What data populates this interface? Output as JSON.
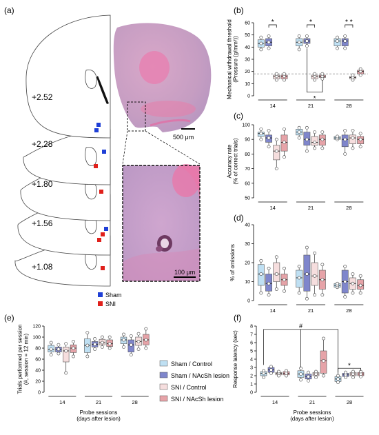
{
  "panels": {
    "a": "(a)",
    "b": "(b)",
    "c": "(c)",
    "d": "(d)",
    "e": "(e)",
    "f": "(f)"
  },
  "histology": {
    "levels": [
      "+2.52",
      "+2.28",
      "+1.80",
      "+1.56",
      "+1.08"
    ],
    "scale_top": "500 μm",
    "scale_inset": "100 μm",
    "legend": [
      {
        "label": "Sham",
        "color": "#1f3fd6"
      },
      {
        "label": "SNI",
        "color": "#e0201b"
      }
    ]
  },
  "group_legend": [
    {
      "label": "Sham / Control",
      "color": "#bfe0f3"
    },
    {
      "label": "Sham / NAcSh lesion",
      "color": "#7f86cc"
    },
    {
      "label": "SNI / Control",
      "color": "#f6dede"
    },
    {
      "label": "SNI / NAcSh lesion",
      "color": "#e6a3a8"
    }
  ],
  "chart_data": [
    {
      "id": "b",
      "type": "box",
      "ylabel": "Mechanical withdrawal threshold\n(Pressure (g/mm²))",
      "ylim": [
        0,
        60
      ],
      "yticks": [
        0,
        10,
        20,
        30,
        40,
        50,
        60
      ],
      "categories": [
        "14",
        "21",
        "28"
      ],
      "reference_line": 18,
      "groups": [
        {
          "name": "Sham / Control",
          "boxes": [
            [
              38,
              40,
              43,
              46,
              48
            ],
            [
              38,
              41,
              44,
              47,
              49
            ],
            [
              39,
              41,
              45,
              47,
              48
            ]
          ]
        },
        {
          "name": "Sham / NAcSh lesion",
          "boxes": [
            [
              39,
              41,
              44,
              47,
              49
            ],
            [
              41,
              43,
              45,
              47,
              49
            ],
            [
              39,
              41,
              45,
              47,
              49
            ]
          ]
        },
        {
          "name": "SNI / Control",
          "boxes": [
            [
              13,
              14,
              16,
              17,
              18
            ],
            [
              13,
              14,
              16,
              17,
              18
            ],
            [
              13,
              14,
              15,
              16,
              17
            ]
          ]
        },
        {
          "name": "SNI / NAcSh lesion",
          "boxes": [
            [
              13,
              14,
              16,
              17,
              18
            ],
            [
              14,
              15,
              16,
              17,
              18
            ],
            [
              17,
              18,
              20,
              21,
              22
            ]
          ]
        }
      ],
      "annotations": [
        "*",
        "*",
        "* *",
        "*"
      ]
    },
    {
      "id": "c",
      "type": "box",
      "ylabel": "Accuracy rate\n(% of correct trials)",
      "ylim": [
        50,
        100
      ],
      "yticks": [
        50,
        60,
        70,
        80,
        90,
        100
      ],
      "categories": [
        "14",
        "21",
        "28"
      ],
      "groups": [
        {
          "name": "Sham / Control",
          "boxes": [
            [
              90,
              92,
              94,
              95,
              97
            ],
            [
              91,
              93,
              95,
              97,
              98
            ],
            [
              90,
              90,
              91,
              92,
              92
            ]
          ]
        },
        {
          "name": "Sham / NAcSh lesion",
          "boxes": [
            [
              85,
              88,
              91,
              93,
              96
            ],
            [
              82,
              86,
              90,
              95,
              98
            ],
            [
              80,
              85,
              90,
              93,
              96
            ]
          ]
        },
        {
          "name": "SNI / Control",
          "boxes": [
            [
              70,
              76,
              82,
              86,
              90
            ],
            [
              84,
              86,
              88,
              92,
              95
            ],
            [
              84,
              87,
              91,
              93,
              96
            ]
          ]
        },
        {
          "name": "SNI / NAcSh lesion",
          "boxes": [
            [
              78,
              82,
              88,
              93,
              97
            ],
            [
              84,
              86,
              90,
              93,
              95
            ],
            [
              85,
              87,
              90,
              92,
              94
            ]
          ]
        }
      ]
    },
    {
      "id": "d",
      "type": "box",
      "ylabel": "% of omissions",
      "ylim": [
        0,
        40
      ],
      "yticks": [
        0,
        10,
        20,
        30,
        40
      ],
      "categories": [
        "14",
        "21",
        "28"
      ],
      "groups": [
        {
          "name": "Sham / Control",
          "boxes": [
            [
              4,
              8,
              14,
              19,
              21
            ],
            [
              4,
              7,
              12,
              16,
              18
            ],
            [
              7,
              7,
              8,
              9,
              9
            ]
          ]
        },
        {
          "name": "Sham / NAcSh lesion",
          "boxes": [
            [
              3,
              5,
              9,
              14,
              17
            ],
            [
              1,
              5,
              14,
              24,
              28
            ],
            [
              2,
              4,
              10,
              16,
              18
            ]
          ]
        },
        {
          "name": "SNI / Control",
          "boxes": [
            [
              6,
              10,
              14,
              20,
              23
            ],
            [
              3,
              8,
              13,
              20,
              25
            ],
            [
              4,
              6,
              9,
              12,
              14
            ]
          ]
        },
        {
          "name": "SNI / NAcSh lesion",
          "boxes": [
            [
              5,
              8,
              11,
              14,
              17
            ],
            [
              3,
              6,
              11,
              16,
              19
            ],
            [
              4,
              6,
              8,
              11,
              13
            ]
          ]
        }
      ]
    },
    {
      "id": "e",
      "type": "box",
      "ylabel": "Trials performed per session\n(#, session = 12 min)",
      "xlabel": "Probe sessions\n(days after lesion)",
      "ylim": [
        0,
        120
      ],
      "yticks": [
        0,
        20,
        40,
        60,
        80,
        100,
        120
      ],
      "categories": [
        "14",
        "21",
        "28"
      ],
      "groups": [
        {
          "name": "Sham / Control",
          "boxes": [
            [
              68,
              73,
              78,
              85,
              90
            ],
            [
              65,
              72,
              85,
              97,
              108
            ],
            [
              82,
              88,
              95,
              100,
              105
            ]
          ]
        },
        {
          "name": "Sham / NAcSh lesion",
          "boxes": [
            [
              70,
              73,
              78,
              82,
              86
            ],
            [
              78,
              82,
              87,
              92,
              97
            ],
            [
              68,
              73,
              86,
              95,
              102
            ]
          ]
        },
        {
          "name": "SNI / Control",
          "boxes": [
            [
              35,
              55,
              75,
              82,
              88
            ],
            [
              82,
              86,
              90,
              96,
              100
            ],
            [
              78,
              85,
              92,
              100,
              106
            ]
          ]
        },
        {
          "name": "SNI / NAcSh lesion",
          "boxes": [
            [
              65,
              72,
              80,
              86,
              92
            ],
            [
              80,
              83,
              88,
              95,
              100
            ],
            [
              80,
              86,
              95,
              105,
              115
            ]
          ]
        }
      ]
    },
    {
      "id": "f",
      "type": "box",
      "ylabel": "Response latency (sec)",
      "xlabel": "Probe sessions\n(days after lesion)",
      "ylim": [
        0,
        8
      ],
      "yticks": [
        0,
        1,
        2,
        3,
        4,
        5,
        6,
        7,
        8
      ],
      "categories": [
        "14",
        "21",
        "28"
      ],
      "groups": [
        {
          "name": "Sham / Control",
          "boxes": [
            [
              1.8,
              2.0,
              2.3,
              2.5,
              2.6
            ],
            [
              1.5,
              1.8,
              2.2,
              2.6,
              2.9
            ],
            [
              1.2,
              1.3,
              1.6,
              1.9,
              2.0
            ]
          ]
        },
        {
          "name": "Sham / NAcSh lesion",
          "boxes": [
            [
              2.3,
              2.4,
              2.7,
              3.0,
              3.1
            ],
            [
              1.4,
              1.6,
              1.9,
              2.2,
              2.4
            ],
            [
              1.8,
              1.9,
              2.1,
              2.3,
              2.4
            ]
          ]
        },
        {
          "name": "SNI / Control",
          "boxes": [
            [
              2.0,
              2.1,
              2.3,
              2.4,
              2.5
            ],
            [
              1.8,
              2.0,
              2.2,
              2.4,
              2.5
            ],
            [
              1.8,
              2.0,
              2.2,
              2.4,
              2.5
            ]
          ]
        },
        {
          "name": "SNI / NAcSh lesion",
          "boxes": [
            [
              2.0,
              2.1,
              2.3,
              2.5,
              2.6
            ],
            [
              2.0,
              2.3,
              3.8,
              5.0,
              6.5
            ],
            [
              1.9,
              2.0,
              2.2,
              2.4,
              2.5
            ]
          ]
        }
      ],
      "annotations": [
        "#",
        "*"
      ]
    }
  ]
}
